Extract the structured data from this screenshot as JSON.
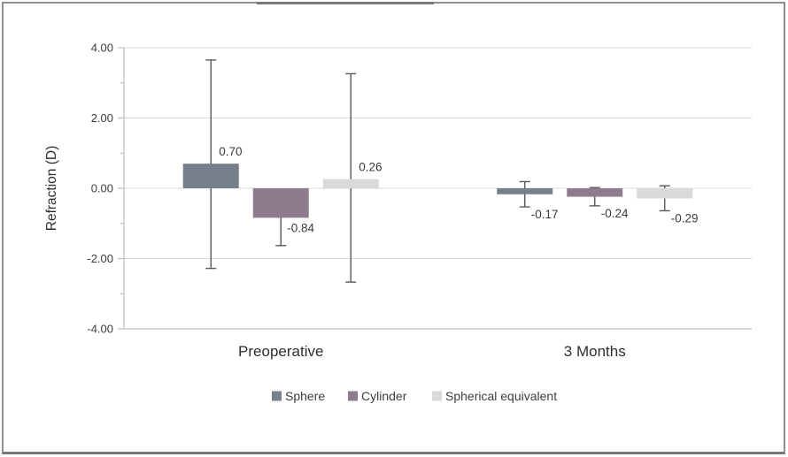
{
  "figure": {
    "ylabel": "Refraction (D)"
  },
  "chart_data": {
    "type": "bar",
    "title": "",
    "xlabel": "",
    "ylabel": "Refraction (D)",
    "ylim": [
      -4,
      4
    ],
    "grid": true,
    "legend_position": "bottom",
    "yticks": [
      {
        "value": 4,
        "label": "4.00"
      },
      {
        "value": 2,
        "label": "2.00"
      },
      {
        "value": 0,
        "label": "0.00"
      },
      {
        "value": -2,
        "label": "-2.00"
      },
      {
        "value": -4,
        "label": "-4.00"
      }
    ],
    "minor_tick_values": [
      3,
      1,
      -1,
      -3
    ],
    "gridline_values": [
      4,
      2,
      0,
      -2
    ],
    "categories": [
      "Preoperative",
      "3 Months"
    ],
    "series": [
      {
        "name": "Sphere",
        "color": "#75808C",
        "values": [
          0.7,
          -0.17
        ],
        "labels": [
          "0.70",
          "-0.17"
        ],
        "error_hi": [
          3.65,
          0.19
        ],
        "error_lo": [
          -2.28,
          -0.53
        ]
      },
      {
        "name": "Cylinder",
        "color": "#8E7B8B",
        "values": [
          -0.84,
          -0.24
        ],
        "labels": [
          "-0.84",
          "-0.24"
        ],
        "error_hi": [
          -0.05,
          0.02
        ],
        "error_lo": [
          -1.63,
          -0.5
        ]
      },
      {
        "name": "Spherical equivalent",
        "color": "#D9D9D9",
        "values": [
          0.26,
          -0.29
        ],
        "labels": [
          "0.26",
          "-0.29"
        ],
        "error_hi": [
          3.26,
          0.07
        ],
        "error_lo": [
          -2.67,
          -0.64
        ]
      }
    ],
    "colors": {
      "gridline": "#d9d9d9",
      "axis_line": "#bfbfbf",
      "error_bar": "#595959",
      "tick_label": "#3d3d3d",
      "data_label": "#3a3a3a",
      "category_label": "#2e2e2e",
      "legend_label": "#3f3f3f",
      "axis_title": "#2e2e2e"
    }
  }
}
